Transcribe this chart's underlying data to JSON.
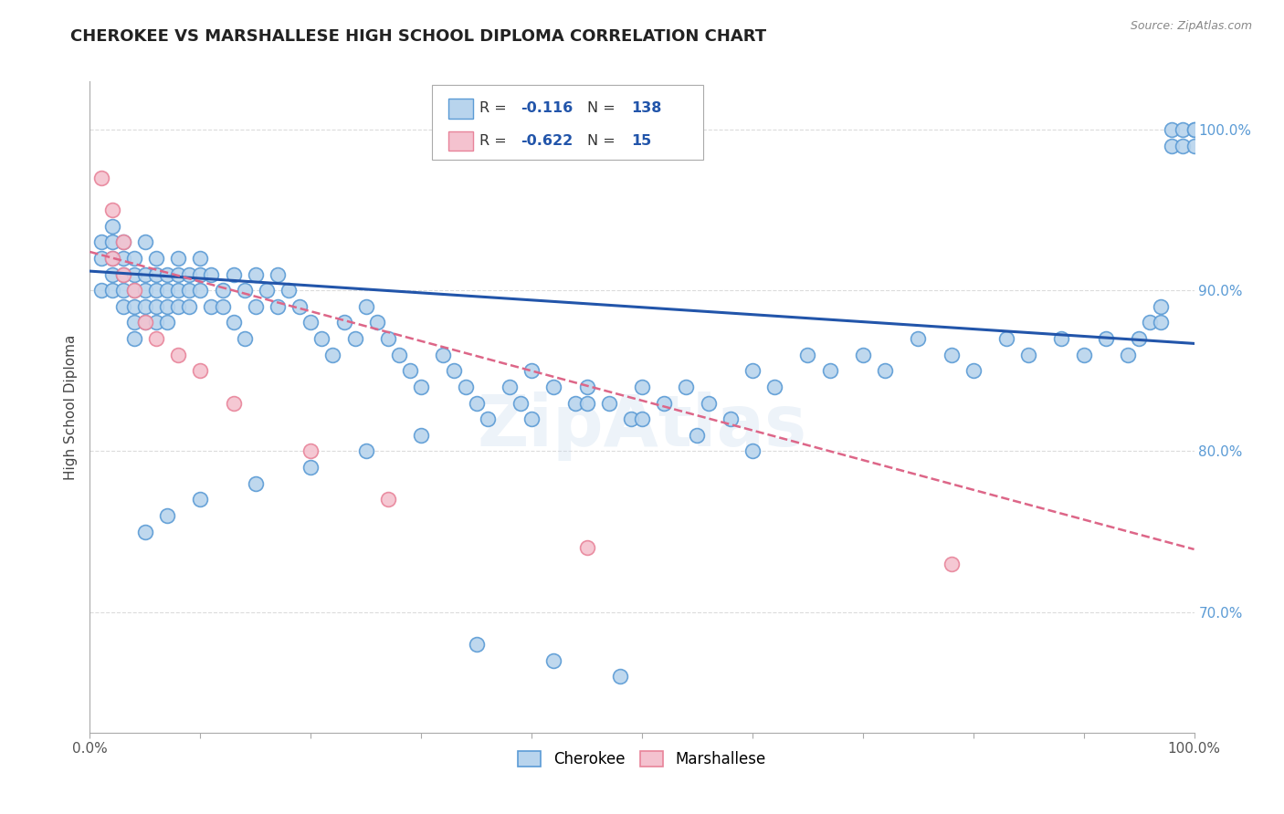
{
  "title": "CHEROKEE VS MARSHALLESE HIGH SCHOOL DIPLOMA CORRELATION CHART",
  "source": "Source: ZipAtlas.com",
  "ylabel": "High School Diploma",
  "right_yticks": [
    0.7,
    0.8,
    0.9,
    1.0
  ],
  "right_yticklabels": [
    "70.0%",
    "80.0%",
    "90.0%",
    "100.0%"
  ],
  "xmin": 0.0,
  "xmax": 1.0,
  "ymin": 0.625,
  "ymax": 1.03,
  "cherokee_color": "#b8d4ed",
  "cherokee_edge": "#5b9bd5",
  "marshallese_color": "#f4c2cf",
  "marshallese_edge": "#e8849a",
  "regression_blue": "#2255aa",
  "regression_pink": "#dd6688",
  "watermark": "ZipAtlas",
  "background_color": "#ffffff",
  "grid_color": "#cccccc",
  "title_color": "#222222",
  "val_color": "#2255aa",
  "label_color": "#444444",
  "source_color": "#888888",
  "rtick_color": "#5b9bd5",
  "blue_intercept": 0.912,
  "blue_slope": -0.045,
  "pink_intercept": 0.924,
  "pink_slope": -0.185,
  "cherokee_x": [
    0.01,
    0.01,
    0.01,
    0.02,
    0.02,
    0.02,
    0.02,
    0.02,
    0.03,
    0.03,
    0.03,
    0.03,
    0.03,
    0.04,
    0.04,
    0.04,
    0.04,
    0.04,
    0.04,
    0.05,
    0.05,
    0.05,
    0.05,
    0.05,
    0.06,
    0.06,
    0.06,
    0.06,
    0.06,
    0.07,
    0.07,
    0.07,
    0.07,
    0.08,
    0.08,
    0.08,
    0.08,
    0.09,
    0.09,
    0.09,
    0.1,
    0.1,
    0.1,
    0.11,
    0.11,
    0.12,
    0.12,
    0.13,
    0.13,
    0.14,
    0.14,
    0.15,
    0.15,
    0.16,
    0.17,
    0.17,
    0.18,
    0.19,
    0.2,
    0.21,
    0.22,
    0.23,
    0.24,
    0.25,
    0.26,
    0.27,
    0.28,
    0.29,
    0.3,
    0.32,
    0.33,
    0.34,
    0.35,
    0.36,
    0.38,
    0.39,
    0.4,
    0.42,
    0.44,
    0.45,
    0.47,
    0.49,
    0.5,
    0.52,
    0.54,
    0.56,
    0.58,
    0.6,
    0.62,
    0.65,
    0.67,
    0.7,
    0.72,
    0.75,
    0.78,
    0.8,
    0.83,
    0.85,
    0.88,
    0.9,
    0.92,
    0.94,
    0.95,
    0.96,
    0.97,
    0.97,
    0.98,
    0.98,
    0.99,
    0.99,
    1.0,
    1.0,
    1.0,
    0.5,
    0.55,
    0.6,
    0.45,
    0.4,
    0.3,
    0.25,
    0.2,
    0.15,
    0.1,
    0.07,
    0.05,
    0.35,
    0.42,
    0.48
  ],
  "cherokee_y": [
    0.93,
    0.92,
    0.9,
    0.94,
    0.93,
    0.92,
    0.91,
    0.9,
    0.93,
    0.92,
    0.91,
    0.9,
    0.89,
    0.92,
    0.91,
    0.9,
    0.89,
    0.88,
    0.87,
    0.93,
    0.91,
    0.9,
    0.89,
    0.88,
    0.92,
    0.91,
    0.9,
    0.89,
    0.88,
    0.91,
    0.9,
    0.89,
    0.88,
    0.92,
    0.91,
    0.9,
    0.89,
    0.91,
    0.9,
    0.89,
    0.92,
    0.91,
    0.9,
    0.91,
    0.89,
    0.9,
    0.89,
    0.91,
    0.88,
    0.9,
    0.87,
    0.91,
    0.89,
    0.9,
    0.91,
    0.89,
    0.9,
    0.89,
    0.88,
    0.87,
    0.86,
    0.88,
    0.87,
    0.89,
    0.88,
    0.87,
    0.86,
    0.85,
    0.84,
    0.86,
    0.85,
    0.84,
    0.83,
    0.82,
    0.84,
    0.83,
    0.85,
    0.84,
    0.83,
    0.84,
    0.83,
    0.82,
    0.84,
    0.83,
    0.84,
    0.83,
    0.82,
    0.85,
    0.84,
    0.86,
    0.85,
    0.86,
    0.85,
    0.87,
    0.86,
    0.85,
    0.87,
    0.86,
    0.87,
    0.86,
    0.87,
    0.86,
    0.87,
    0.88,
    0.89,
    0.88,
    1.0,
    0.99,
    1.0,
    0.99,
    1.0,
    0.99,
    1.0,
    0.82,
    0.81,
    0.8,
    0.83,
    0.82,
    0.81,
    0.8,
    0.79,
    0.78,
    0.77,
    0.76,
    0.75,
    0.68,
    0.67,
    0.66
  ],
  "marshallese_x": [
    0.01,
    0.02,
    0.02,
    0.03,
    0.03,
    0.04,
    0.05,
    0.06,
    0.08,
    0.1,
    0.13,
    0.2,
    0.27,
    0.45,
    0.78
  ],
  "marshallese_y": [
    0.97,
    0.95,
    0.92,
    0.93,
    0.91,
    0.9,
    0.88,
    0.87,
    0.86,
    0.85,
    0.83,
    0.8,
    0.77,
    0.74,
    0.73
  ]
}
